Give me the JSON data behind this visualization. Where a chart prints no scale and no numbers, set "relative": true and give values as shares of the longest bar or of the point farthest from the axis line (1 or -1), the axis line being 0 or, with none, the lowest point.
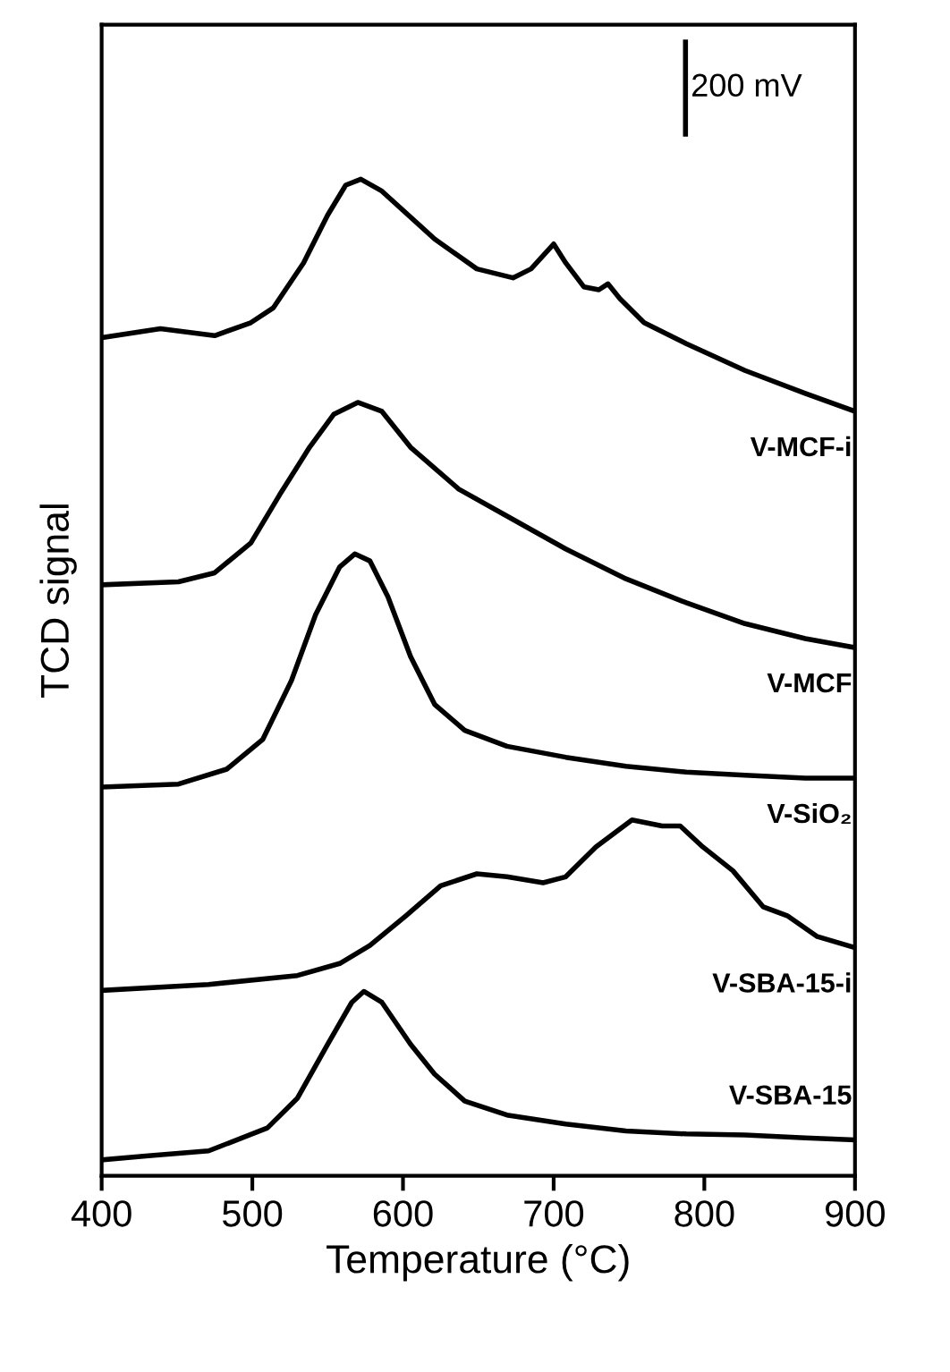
{
  "chart_data": {
    "type": "line",
    "relative": true,
    "xlabel": "Temperature (°C)",
    "ylabel": "TCD signal",
    "xlim": [
      400,
      900
    ],
    "xticks": [
      400,
      500,
      600,
      700,
      800,
      900
    ],
    "grid": false,
    "legend": false,
    "marker": "none",
    "line_style": "solid",
    "annotations": [
      "200 mV"
    ],
    "series": [
      {
        "name": "V-MCF-i",
        "color": "#000000",
        "x": [
          400,
          439,
          475,
          499,
          514,
          534,
          550,
          562,
          572,
          586,
          621,
          649,
          673,
          685,
          700,
          708,
          720,
          730,
          736,
          744,
          760,
          788,
          827,
          867,
          900
        ],
        "values": [
          0.841,
          0.85,
          0.843,
          0.856,
          0.871,
          0.916,
          0.964,
          0.994,
          1.0,
          0.988,
          0.94,
          0.91,
          0.901,
          0.91,
          0.935,
          0.916,
          0.892,
          0.889,
          0.895,
          0.88,
          0.856,
          0.835,
          0.808,
          0.785,
          0.767
        ]
      },
      {
        "name": "V-MCF",
        "color": "#000000",
        "x": [
          400,
          451,
          475,
          499,
          518,
          538,
          554,
          570,
          586,
          605,
          637,
          669,
          708,
          748,
          788,
          827,
          867,
          900
        ],
        "values": [
          0.593,
          0.596,
          0.605,
          0.635,
          0.683,
          0.731,
          0.764,
          0.776,
          0.767,
          0.731,
          0.689,
          0.662,
          0.629,
          0.599,
          0.575,
          0.554,
          0.539,
          0.53
        ]
      },
      {
        "name": "V-SiO₂",
        "color": "#000000",
        "x": [
          400,
          451,
          483,
          507,
          526,
          542,
          558,
          568,
          578,
          590,
          605,
          621,
          641,
          669,
          708,
          748,
          788,
          827,
          867,
          900
        ],
        "values": [
          0.39,
          0.393,
          0.408,
          0.438,
          0.497,
          0.563,
          0.611,
          0.624,
          0.617,
          0.581,
          0.521,
          0.473,
          0.447,
          0.431,
          0.42,
          0.411,
          0.405,
          0.402,
          0.399,
          0.399
        ]
      },
      {
        "name": "V-SBA-15-i",
        "color": "#000000",
        "x": [
          400,
          471,
          530,
          558,
          578,
          602,
          625,
          649,
          669,
          693,
          708,
          728,
          752,
          772,
          784,
          799,
          819,
          839,
          855,
          875,
          900
        ],
        "values": [
          0.186,
          0.192,
          0.201,
          0.213,
          0.231,
          0.261,
          0.291,
          0.303,
          0.3,
          0.294,
          0.3,
          0.33,
          0.357,
          0.351,
          0.351,
          0.33,
          0.306,
          0.27,
          0.261,
          0.24,
          0.229
        ]
      },
      {
        "name": "V-SBA-15",
        "color": "#000000",
        "x": [
          400,
          431,
          471,
          510,
          530,
          550,
          566,
          574,
          586,
          605,
          621,
          641,
          669,
          708,
          748,
          788,
          827,
          867,
          900
        ],
        "values": [
          0.016,
          0.02,
          0.025,
          0.048,
          0.078,
          0.132,
          0.174,
          0.185,
          0.174,
          0.132,
          0.102,
          0.075,
          0.061,
          0.052,
          0.045,
          0.042,
          0.041,
          0.038,
          0.036
        ]
      }
    ]
  }
}
